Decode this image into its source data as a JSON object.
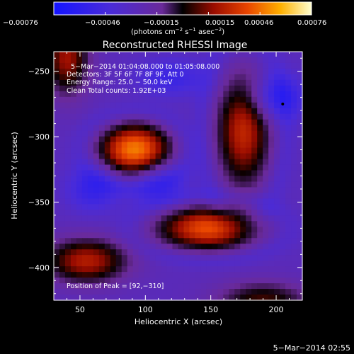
{
  "colorbar": {
    "ticks": [
      "−0.00076",
      "−0.00046",
      "−0.00015",
      "0.00015",
      "0.00046",
      "0.00076"
    ],
    "tick_values": [
      -0.00076,
      -0.00046,
      -0.00015,
      0.00015,
      0.00046,
      0.00076
    ],
    "label_main": "(photons cm",
    "label_sup1": "−2",
    "label_mid": " s",
    "label_sup2": "−1",
    "label_mid2": " asec",
    "label_sup3": "−2",
    "label_end": ")"
  },
  "chart_data": {
    "type": "heatmap",
    "title": "Reconstructed RHESSI Image",
    "xlabel": "Heliocentric X (arcsec)",
    "ylabel": "Heliocentric Y (arcsec)",
    "xlim": [
      30,
      220
    ],
    "ylim": [
      -425,
      -235
    ],
    "xticks": [
      50,
      100,
      150,
      200
    ],
    "yticks": [
      -250,
      -300,
      -350,
      -400
    ],
    "xtick_labels": [
      "50",
      "100",
      "150",
      "200"
    ],
    "ytick_labels": [
      "−250",
      "−300",
      "−350",
      "−400"
    ],
    "value_range": [
      -0.00076,
      0.00076
    ],
    "annotations": {
      "time": "5−Mar−2014 01:04:08.000 to 01:05:08.000",
      "detectors": "Detectors: 3F 5F 6F 7F 8F 9F, Att 0",
      "energy": "Energy Range: 25.0 − 50.0 keV",
      "method": "Clean     Total counts: 1.92E+03",
      "peak": "Position of Peak = [92,−310]"
    },
    "sources": [
      {
        "x": 92,
        "y": -310,
        "sx": 18,
        "sy": 13,
        "amp": 1.0
      },
      {
        "x": 148,
        "y": -370,
        "sx": 26,
        "sy": 11,
        "amp": 0.85
      },
      {
        "x": 175,
        "y": -295,
        "sx": 14,
        "sy": 30,
        "amp": 0.7
      },
      {
        "x": 55,
        "y": -395,
        "sx": 22,
        "sy": 12,
        "amp": 0.65
      },
      {
        "x": 40,
        "y": -240,
        "sx": 12,
        "sy": 20,
        "amp": 0.6
      },
      {
        "x": 190,
        "y": -425,
        "sx": 25,
        "sy": 10,
        "amp": 0.45
      },
      {
        "x": 60,
        "y": -340,
        "sx": 14,
        "sy": 12,
        "amp": -0.35
      },
      {
        "x": 120,
        "y": -255,
        "sx": 18,
        "sy": 10,
        "amp": -0.3
      },
      {
        "x": 200,
        "y": -270,
        "sx": 16,
        "sy": 12,
        "amp": -0.4
      },
      {
        "x": 110,
        "y": -335,
        "sx": 15,
        "sy": 12,
        "amp": -0.3
      }
    ]
  },
  "footer": {
    "date": "5−Mar−2014 02:55"
  }
}
